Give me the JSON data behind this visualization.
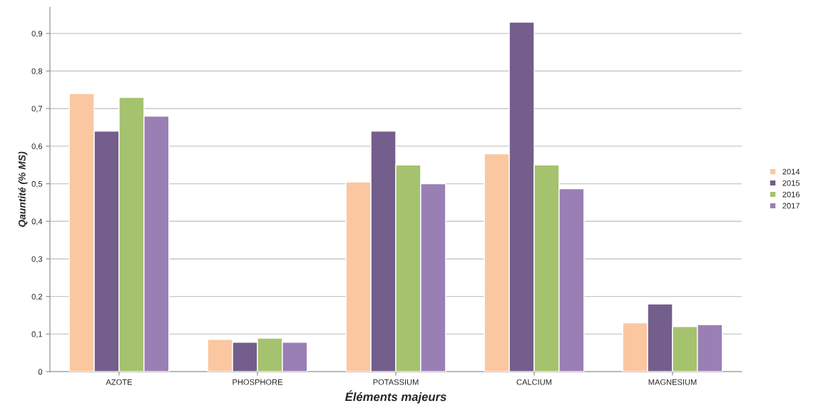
{
  "chart_data": {
    "type": "bar",
    "xlabel": "Éléments majeurs",
    "ylabel": "Qauntité (% MS)",
    "categories": [
      "AZOTE",
      "PHOSPHORE",
      "POTASSIUM",
      "CALCIUM",
      "MAGNESIUM"
    ],
    "series": [
      {
        "name": "2014",
        "color": "#fbc7a0",
        "values": [
          0.74,
          0.086,
          0.505,
          0.58,
          0.13
        ]
      },
      {
        "name": "2015",
        "color": "#735e8c",
        "values": [
          0.64,
          0.078,
          0.64,
          0.93,
          0.18
        ]
      },
      {
        "name": "2016",
        "color": "#a5c26e",
        "values": [
          0.73,
          0.089,
          0.55,
          0.55,
          0.12
        ]
      },
      {
        "name": "2017",
        "color": "#9a7fb5",
        "values": [
          0.68,
          0.078,
          0.5,
          0.487,
          0.125
        ]
      }
    ],
    "ylim": [
      0,
      0.97
    ],
    "yticks": [
      0,
      {
        "value": 0.1,
        "label": "0,1"
      },
      {
        "value": 0.2,
        "label": "0,2"
      },
      {
        "value": 0.3,
        "label": "0,3"
      },
      {
        "value": 0.4,
        "label": "0,4"
      },
      {
        "value": 0.5,
        "label": "0,5"
      },
      {
        "value": 0.6,
        "label": "0,6"
      },
      {
        "value": 0.7,
        "label": "0,7"
      },
      {
        "value": 0.8,
        "label": "0,8"
      },
      {
        "value": 0.9,
        "label": "0,9"
      }
    ],
    "grid": "y",
    "legend": "right"
  }
}
